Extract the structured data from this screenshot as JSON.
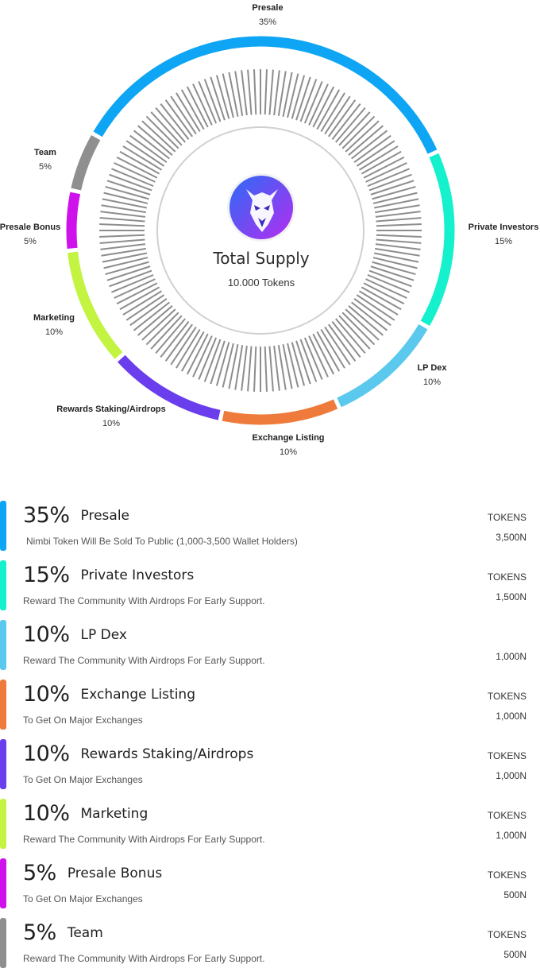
{
  "chart_data": {
    "type": "pie",
    "center": {
      "title": "Total Supply",
      "subtitle": "10.000 Tokens"
    },
    "logo": "wolf-head-logo",
    "segments": [
      {
        "label": "Presale",
        "pct_label": "35%",
        "value": 35,
        "color": "#0ea5f4"
      },
      {
        "label": "Private Investors",
        "pct_label": "15%",
        "value": 15,
        "color": "#15f0cd"
      },
      {
        "label": "LP Dex",
        "pct_label": "10%",
        "value": 10,
        "color": "#5bc8ee"
      },
      {
        "label": "Exchange Listing",
        "pct_label": "10%",
        "value": 10,
        "color": "#ee7b3b"
      },
      {
        "label": "Rewards Staking/Airdrops",
        "pct_label": "10%",
        "value": 10,
        "color": "#6a3ded"
      },
      {
        "label": "Marketing",
        "pct_label": "10%",
        "value": 10,
        "color": "#c3f441"
      },
      {
        "label": "Presale Bonus",
        "pct_label": "5%",
        "value": 5,
        "color": "#cf12ec"
      },
      {
        "label": "Team",
        "pct_label": "5%",
        "value": 5,
        "color": "#8f8f8f"
      }
    ]
  },
  "allocations": [
    {
      "pct": "35%",
      "name": "Presale",
      "desc": "Nimbi Token Will Be Sold To Public (1,000-3,500 Wallet Holders)",
      "unit": "TOKENS",
      "amount": "3,500N",
      "color": "#0ea5f4"
    },
    {
      "pct": "15%",
      "name": "Private Investors",
      "desc": "Reward The Community With Airdrops For Early Support.",
      "unit": "TOKENS",
      "amount": "1,500N",
      "color": "#15f0cd"
    },
    {
      "pct": "10%",
      "name": "LP Dex",
      "desc": "Reward The Community With Airdrops For Early Support.",
      "unit": "",
      "amount": "1,000N",
      "color": "#5bc8ee"
    },
    {
      "pct": "10%",
      "name": "Exchange Listing",
      "desc": "To Get On Major Exchanges",
      "unit": "TOKENS",
      "amount": "1,000N",
      "color": "#ee7b3b"
    },
    {
      "pct": "10%",
      "name": "Rewards Staking/Airdrops",
      "desc": "To Get On Major Exchanges",
      "unit": "TOKENS",
      "amount": "1,000N",
      "color": "#6a3ded"
    },
    {
      "pct": "10%",
      "name": "Marketing",
      "desc": "Reward The Community With Airdrops For Early Support.",
      "unit": "TOKENS",
      "amount": "1,000N",
      "color": "#c3f441"
    },
    {
      "pct": "5%",
      "name": "Presale Bonus",
      "desc": "To Get On Major Exchanges",
      "unit": "TOKENS",
      "amount": "500N",
      "color": "#cf12ec"
    },
    {
      "pct": "5%",
      "name": "Team",
      "desc": "Reward The Community With Airdrops For Early Support.",
      "unit": "TOKENS",
      "amount": "500N",
      "color": "#8f8f8f"
    }
  ]
}
